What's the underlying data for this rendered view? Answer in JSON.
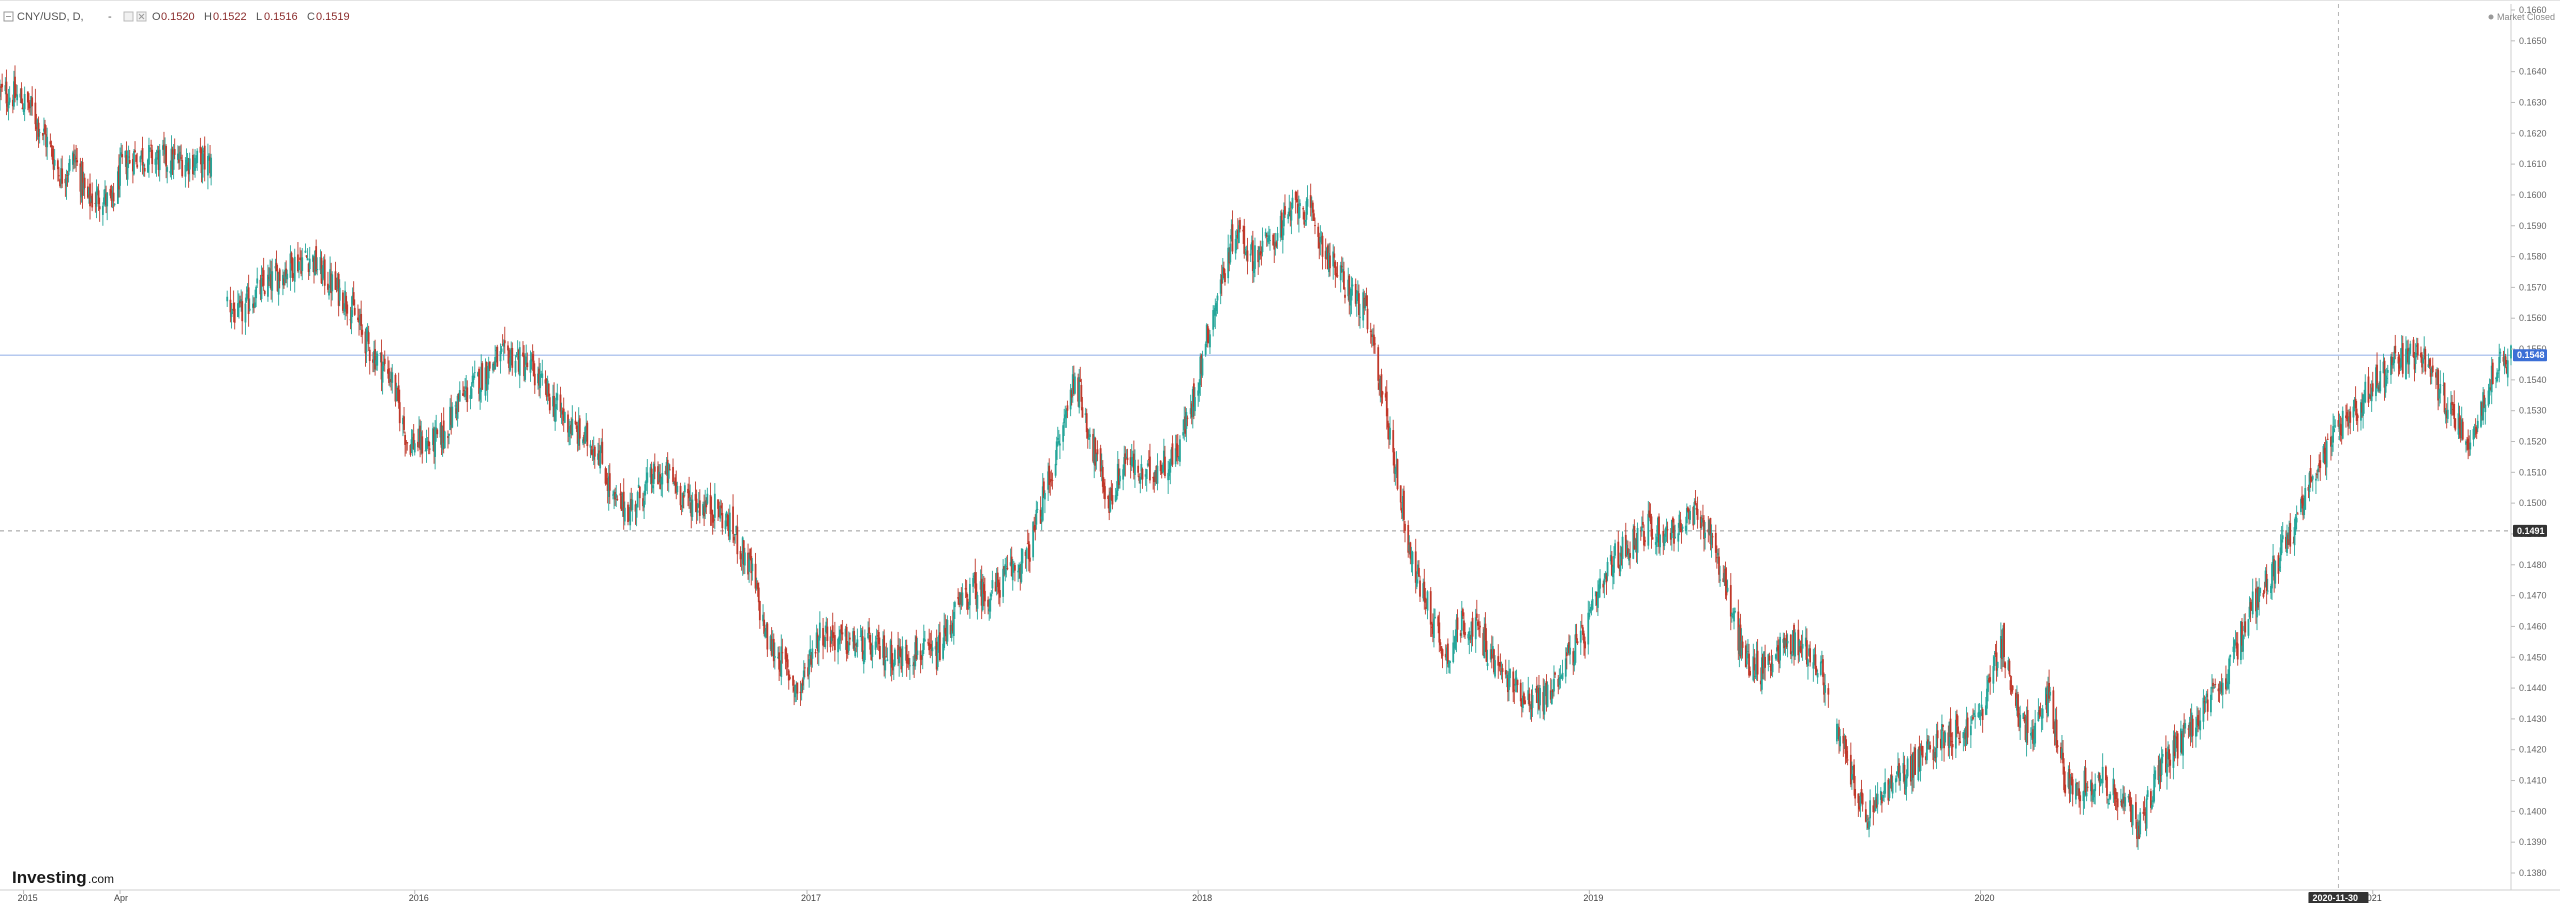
{
  "header": {
    "symbol": "CNY/USD, D, ",
    "dash": "-",
    "open_label": "O",
    "open": "0.1520",
    "high_label": "H",
    "high": "0.1522",
    "low_label": "L",
    "low": "0.1516",
    "close_label": "C",
    "close": "0.1519"
  },
  "status": "Market Closed",
  "logo": {
    "main": "Investing",
    "sub": ".com"
  },
  "colors": {
    "up": "#26a69a",
    "down": "#c0392b",
    "current_price_line": "#9db7ea",
    "current_price_badge": "#3b6fd6",
    "crosshair_badge": "#333333",
    "axis_text": "#666666"
  },
  "chart_data": {
    "type": "candlestick",
    "symbol": "CNY/USD",
    "interval": "D",
    "ylim": [
      0.1385,
      0.166
    ],
    "y_ticks": [
      "0.1660",
      "0.1650",
      "0.1640",
      "0.1630",
      "0.1620",
      "0.1610",
      "0.1600",
      "0.1590",
      "0.1580",
      "0.1570",
      "0.1560",
      "0.1550",
      "0.1540",
      "0.1530",
      "0.1520",
      "0.1510",
      "0.1500",
      "0.1490",
      "0.1480",
      "0.1470",
      "0.1460",
      "0.1450",
      "0.1440",
      "0.1430",
      "0.1420",
      "0.1410",
      "0.1400",
      "0.1390",
      "0.1380"
    ],
    "x_ticks": [
      {
        "label": "2015",
        "date": "2015-01-01"
      },
      {
        "label": "Apr",
        "date": "2015-04-01"
      },
      {
        "label": "2016",
        "date": "2016-01-01"
      },
      {
        "label": "2017",
        "date": "2017-01-01"
      },
      {
        "label": "2018",
        "date": "2018-01-01"
      },
      {
        "label": "2019",
        "date": "2019-01-01"
      },
      {
        "label": "2020",
        "date": "2020-01-01"
      },
      {
        "label": "021",
        "date": "2021-01-01"
      }
    ],
    "x_range": [
      "2014-12-10",
      "2021-05-10"
    ],
    "current_price": "0.1548",
    "crosshair_price": "0.1491",
    "crosshair_date": "2020-11-30",
    "gaps": [
      [
        "2015-06-25",
        "2015-07-10"
      ],
      [
        "2019-08-12",
        "2019-08-20"
      ]
    ],
    "price_path": [
      [
        "2014-12-10",
        0.1633
      ],
      [
        "2014-12-25",
        0.1632
      ],
      [
        "2015-01-08",
        0.1628
      ],
      [
        "2015-01-22",
        0.1618
      ],
      [
        "2015-02-05",
        0.1606
      ],
      [
        "2015-02-18",
        0.1612
      ],
      [
        "2015-03-01",
        0.1598
      ],
      [
        "2015-03-15",
        0.16
      ],
      [
        "2015-03-25",
        0.1596
      ],
      [
        "2015-04-02",
        0.1609
      ],
      [
        "2015-04-15",
        0.1613
      ],
      [
        "2015-05-01",
        0.1612
      ],
      [
        "2015-05-20",
        0.1611
      ],
      [
        "2015-06-10",
        0.1611
      ],
      [
        "2015-06-25",
        0.161
      ],
      [
        "2015-07-10",
        0.1566
      ],
      [
        "2015-07-20",
        0.156
      ],
      [
        "2015-08-05",
        0.1568
      ],
      [
        "2015-08-20",
        0.1572
      ],
      [
        "2015-09-10",
        0.1578
      ],
      [
        "2015-09-25",
        0.158
      ],
      [
        "2015-10-10",
        0.1573
      ],
      [
        "2015-11-01",
        0.1565
      ],
      [
        "2015-11-20",
        0.155
      ],
      [
        "2015-12-10",
        0.1541
      ],
      [
        "2015-12-25",
        0.152
      ],
      [
        "2016-01-15",
        0.1519
      ],
      [
        "2016-01-28",
        0.1522
      ],
      [
        "2016-02-10",
        0.1533
      ],
      [
        "2016-02-25",
        0.1538
      ],
      [
        "2016-03-15",
        0.1546
      ],
      [
        "2016-04-01",
        0.1548
      ],
      [
        "2016-04-20",
        0.1543
      ],
      [
        "2016-05-10",
        0.1532
      ],
      [
        "2016-05-30",
        0.1523
      ],
      [
        "2016-06-20",
        0.1518
      ],
      [
        "2016-07-05",
        0.15
      ],
      [
        "2016-07-20",
        0.1498
      ],
      [
        "2016-08-10",
        0.1508
      ],
      [
        "2016-08-25",
        0.1509
      ],
      [
        "2016-09-10",
        0.1501
      ],
      [
        "2016-09-30",
        0.1499
      ],
      [
        "2016-10-10",
        0.1498
      ],
      [
        "2016-10-25",
        0.149
      ],
      [
        "2016-11-10",
        0.1478
      ],
      [
        "2016-11-25",
        0.1455
      ],
      [
        "2016-12-10",
        0.1448
      ],
      [
        "2016-12-25",
        0.1438
      ],
      [
        "2017-01-05",
        0.1452
      ],
      [
        "2017-01-15",
        0.1459
      ],
      [
        "2017-02-01",
        0.1455
      ],
      [
        "2017-02-20",
        0.1454
      ],
      [
        "2017-03-10",
        0.1452
      ],
      [
        "2017-03-28",
        0.145
      ],
      [
        "2017-04-15",
        0.1452
      ],
      [
        "2017-05-01",
        0.145
      ],
      [
        "2017-05-20",
        0.1465
      ],
      [
        "2017-06-05",
        0.1472
      ],
      [
        "2017-06-20",
        0.147
      ],
      [
        "2017-07-10",
        0.1478
      ],
      [
        "2017-07-25",
        0.1482
      ],
      [
        "2017-08-10",
        0.1502
      ],
      [
        "2017-08-25",
        0.152
      ],
      [
        "2017-09-08",
        0.1542
      ],
      [
        "2017-09-20",
        0.1525
      ],
      [
        "2017-10-01",
        0.151
      ],
      [
        "2017-10-10",
        0.15
      ],
      [
        "2017-10-25",
        0.1515
      ],
      [
        "2017-11-10",
        0.1508
      ],
      [
        "2017-11-25",
        0.1512
      ],
      [
        "2017-12-10",
        0.1515
      ],
      [
        "2017-12-25",
        0.153
      ],
      [
        "2018-01-10",
        0.1555
      ],
      [
        "2018-01-25",
        0.1575
      ],
      [
        "2018-02-05",
        0.159
      ],
      [
        "2018-02-20",
        0.158
      ],
      [
        "2018-03-10",
        0.1585
      ],
      [
        "2018-03-25",
        0.1592
      ],
      [
        "2018-04-05",
        0.1598
      ],
      [
        "2018-04-20",
        0.159
      ],
      [
        "2018-05-05",
        0.1578
      ],
      [
        "2018-05-20",
        0.157
      ],
      [
        "2018-06-05",
        0.1563
      ],
      [
        "2018-06-20",
        0.154
      ],
      [
        "2018-07-05",
        0.151
      ],
      [
        "2018-07-20",
        0.148
      ],
      [
        "2018-08-05",
        0.1465
      ],
      [
        "2018-08-20",
        0.145
      ],
      [
        "2018-09-05",
        0.1462
      ],
      [
        "2018-09-20",
        0.1458
      ],
      [
        "2018-10-10",
        0.1445
      ],
      [
        "2018-10-25",
        0.144
      ],
      [
        "2018-11-10",
        0.1436
      ],
      [
        "2018-11-25",
        0.1438
      ],
      [
        "2018-12-10",
        0.145
      ],
      [
        "2018-12-25",
        0.1455
      ],
      [
        "2019-01-10",
        0.147
      ],
      [
        "2019-01-25",
        0.1482
      ],
      [
        "2019-02-10",
        0.1488
      ],
      [
        "2019-02-25",
        0.1492
      ],
      [
        "2019-03-10",
        0.149
      ],
      [
        "2019-03-25",
        0.1492
      ],
      [
        "2019-04-10",
        0.1496
      ],
      [
        "2019-04-25",
        0.149
      ],
      [
        "2019-05-10",
        0.147
      ],
      [
        "2019-05-25",
        0.145
      ],
      [
        "2019-06-10",
        0.1446
      ],
      [
        "2019-06-25",
        0.1452
      ],
      [
        "2019-07-10",
        0.1455
      ],
      [
        "2019-07-25",
        0.1452
      ],
      [
        "2019-08-12",
        0.144
      ],
      [
        "2019-08-20",
        0.1425
      ],
      [
        "2019-09-05",
        0.141
      ],
      [
        "2019-09-15",
        0.1396
      ],
      [
        "2019-09-30",
        0.1405
      ],
      [
        "2019-10-15",
        0.141
      ],
      [
        "2019-10-30",
        0.1415
      ],
      [
        "2019-11-15",
        0.142
      ],
      [
        "2019-11-30",
        0.1426
      ],
      [
        "2019-12-15",
        0.1425
      ],
      [
        "2020-01-01",
        0.1432
      ],
      [
        "2020-01-15",
        0.1448
      ],
      [
        "2020-01-22",
        0.1455
      ],
      [
        "2020-02-05",
        0.143
      ],
      [
        "2020-02-20",
        0.1425
      ],
      [
        "2020-03-05",
        0.1438
      ],
      [
        "2020-03-20",
        0.141
      ],
      [
        "2020-04-05",
        0.1408
      ],
      [
        "2020-04-20",
        0.1411
      ],
      [
        "2020-05-10",
        0.1404
      ],
      [
        "2020-05-28",
        0.1395
      ],
      [
        "2020-06-15",
        0.1413
      ],
      [
        "2020-07-01",
        0.142
      ],
      [
        "2020-07-20",
        0.143
      ],
      [
        "2020-08-05",
        0.1436
      ],
      [
        "2020-08-20",
        0.1445
      ],
      [
        "2020-09-05",
        0.1463
      ],
      [
        "2020-09-20",
        0.1473
      ],
      [
        "2020-10-05",
        0.1482
      ],
      [
        "2020-10-20",
        0.1492
      ],
      [
        "2020-11-05",
        0.151
      ],
      [
        "2020-11-20",
        0.1517
      ],
      [
        "2020-12-05",
        0.1528
      ],
      [
        "2020-12-20",
        0.1532
      ],
      [
        "2021-01-05",
        0.154
      ],
      [
        "2021-01-20",
        0.1545
      ],
      [
        "2021-02-05",
        0.1548
      ],
      [
        "2021-02-20",
        0.1546
      ],
      [
        "2021-03-05",
        0.1535
      ],
      [
        "2021-03-20",
        0.1528
      ],
      [
        "2021-04-01",
        0.152
      ],
      [
        "2021-04-15",
        0.1535
      ],
      [
        "2021-04-28",
        0.1545
      ],
      [
        "2021-05-10",
        0.1548
      ]
    ]
  }
}
